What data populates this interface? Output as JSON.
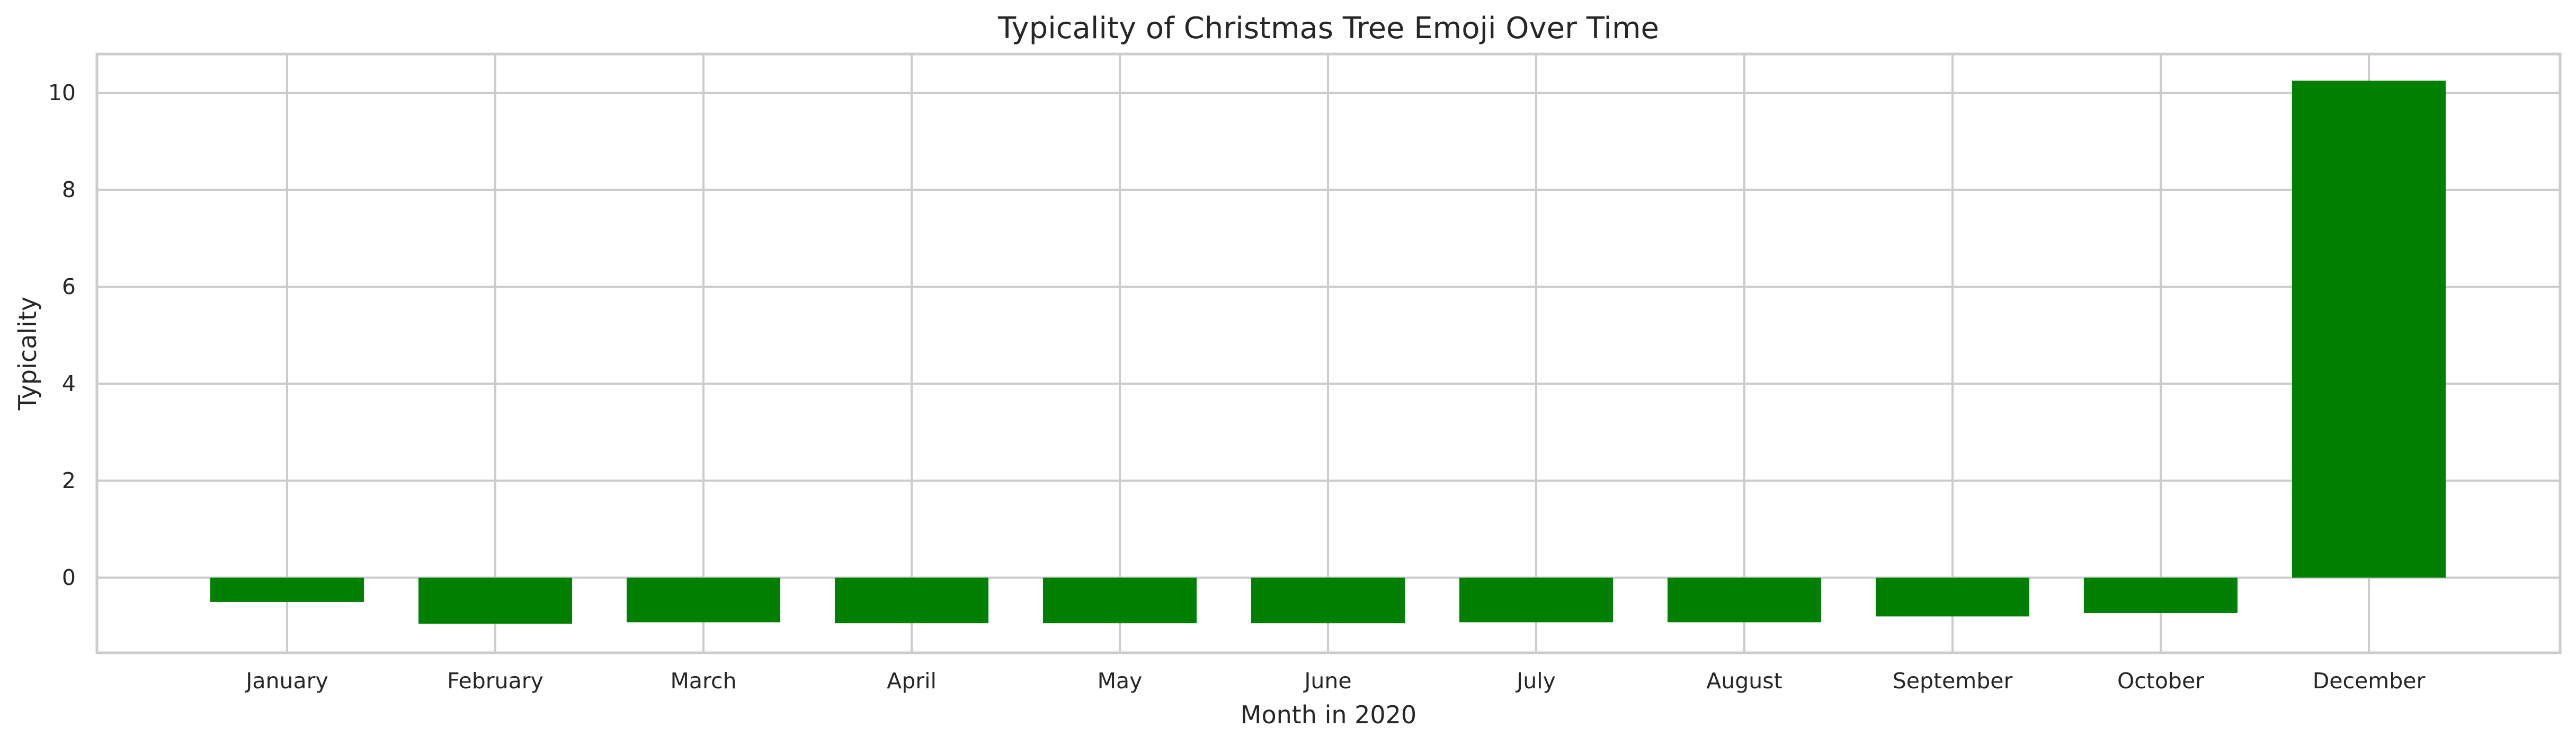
{
  "chart_data": {
    "type": "bar",
    "title": "Typicality of Christmas Tree Emoji Over Time",
    "xlabel": "Month in 2020",
    "ylabel": "Typicality",
    "categories": [
      "January",
      "February",
      "March",
      "April",
      "May",
      "June",
      "July",
      "August",
      "September",
      "October",
      "December"
    ],
    "values": [
      -0.5,
      -0.95,
      -0.92,
      -0.94,
      -0.94,
      -0.94,
      -0.92,
      -0.92,
      -0.8,
      -0.73,
      10.25
    ],
    "ylim": [
      -1.55,
      10.8
    ],
    "yticks": [
      0,
      2,
      4,
      6,
      8,
      10
    ],
    "grid": true,
    "bar_color": "#008000",
    "grid_color": "#cccccc"
  }
}
